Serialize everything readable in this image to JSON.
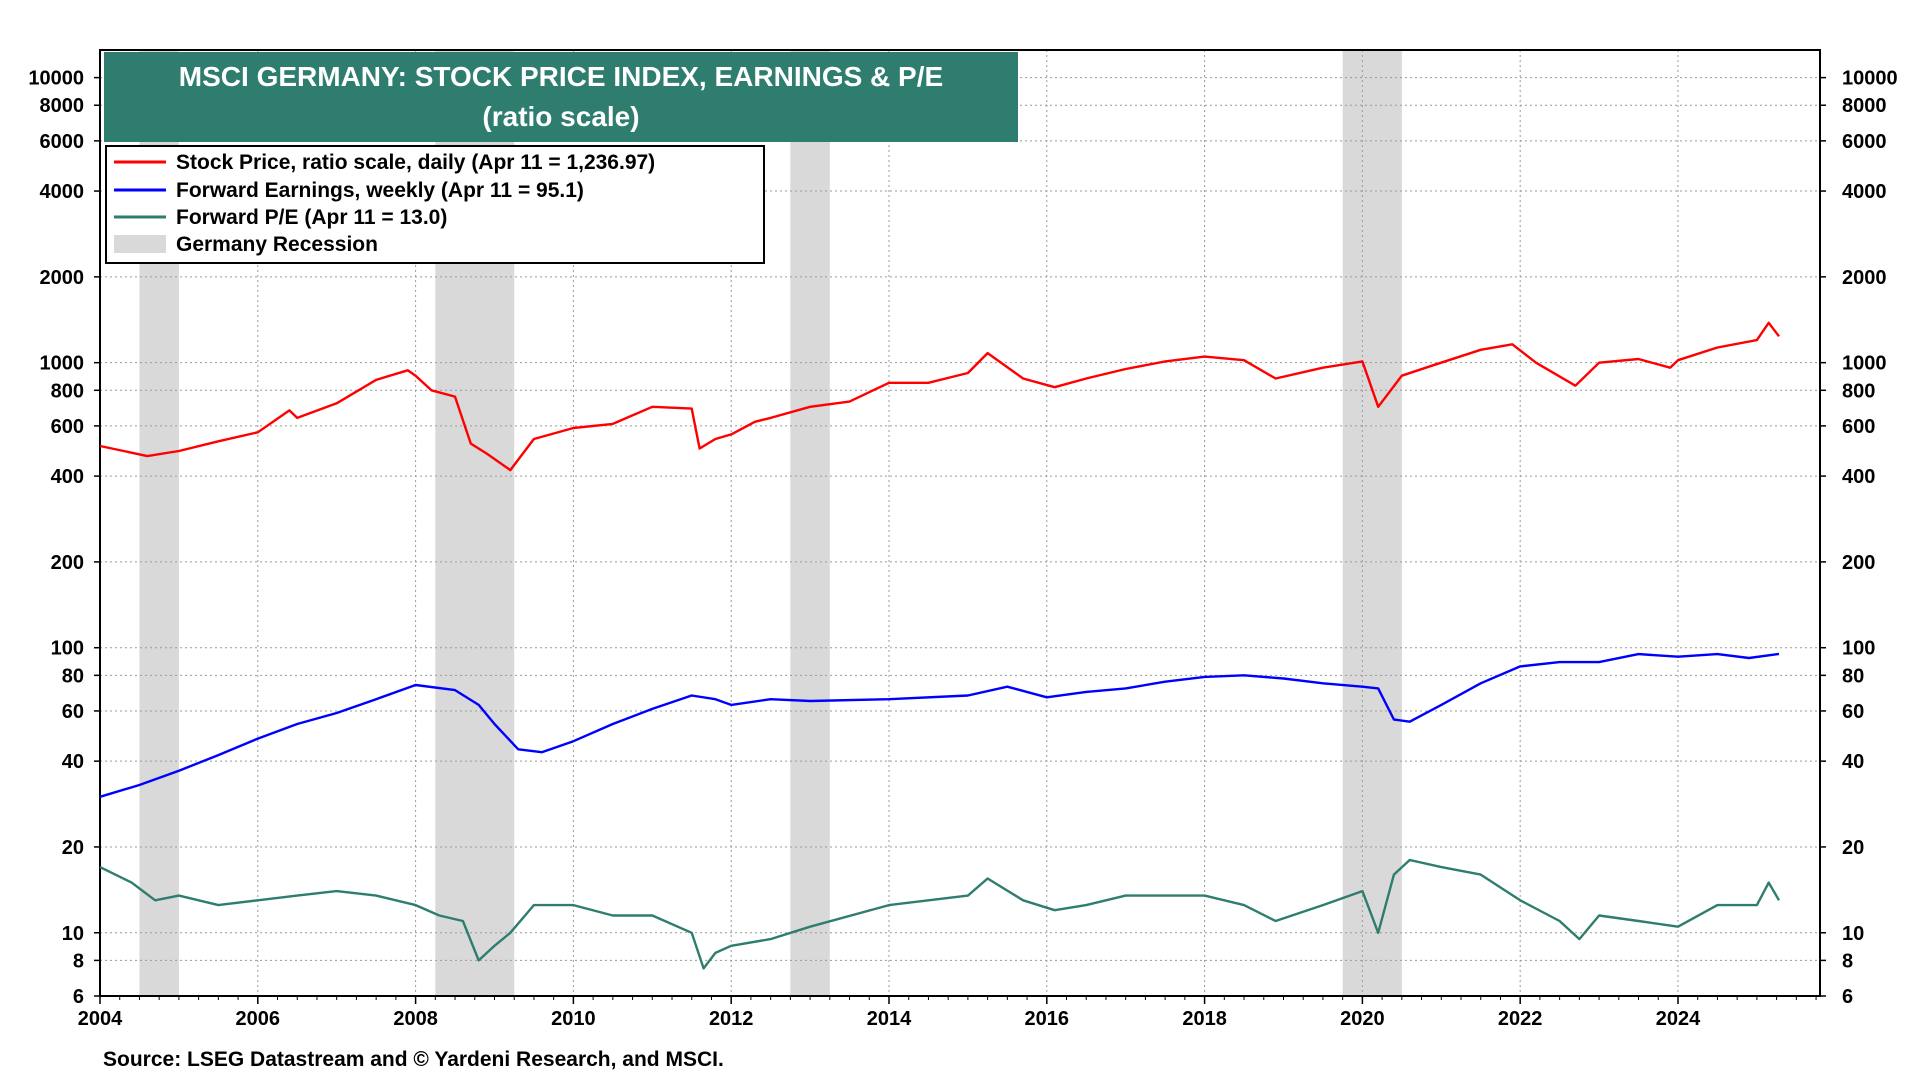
{
  "chart_data": {
    "type": "line",
    "title": "MSCI GERMANY: STOCK PRICE INDEX, EARNINGS & P/E",
    "subtitle": "(ratio scale)",
    "source": "Source: LSEG Datastream and © Yardeni Research, and MSCI.",
    "y_scale": "log",
    "ylim": [
      6,
      12500
    ],
    "xlim": [
      2004.0,
      2025.8
    ],
    "x_ticks": [
      2004,
      2006,
      2008,
      2010,
      2012,
      2014,
      2016,
      2018,
      2020,
      2022,
      2024
    ],
    "y_ticks": [
      6,
      8,
      10,
      20,
      40,
      60,
      80,
      100,
      200,
      400,
      600,
      800,
      1000,
      2000,
      4000,
      6000,
      8000,
      10000
    ],
    "grid": "dotted",
    "legend_position": "top-left",
    "legend": [
      {
        "label": "Stock Price, ratio scale, daily (Apr 11 = 1,236.97)",
        "color": "#ff0000",
        "kind": "line"
      },
      {
        "label": "Forward Earnings, weekly (Apr 11 = 95.1)",
        "color": "#0000ff",
        "kind": "line"
      },
      {
        "label": "Forward P/E (Apr 11 = 13.0)",
        "color": "#2e7d6e",
        "kind": "line"
      },
      {
        "label": "Germany Recession",
        "color": "#d9d9d9",
        "kind": "box"
      }
    ],
    "recessions": [
      [
        2004.5,
        2005.0
      ],
      [
        2008.25,
        2009.25
      ],
      [
        2012.75,
        2013.25
      ],
      [
        2019.75,
        2020.5
      ]
    ],
    "series": [
      {
        "name": "Stock Price, ratio scale, daily (Apr 11 = 1,236.97)",
        "color": "#ff0000",
        "x": [
          2004.0,
          2004.3,
          2004.6,
          2005.0,
          2005.5,
          2006.0,
          2006.4,
          2006.5,
          2007.0,
          2007.5,
          2007.9,
          2008.0,
          2008.2,
          2008.5,
          2008.7,
          2008.9,
          2009.2,
          2009.5,
          2010.0,
          2010.5,
          2011.0,
          2011.5,
          2011.6,
          2011.8,
          2012.0,
          2012.3,
          2012.5,
          2013.0,
          2013.5,
          2014.0,
          2014.5,
          2015.0,
          2015.25,
          2015.7,
          2016.1,
          2016.5,
          2017.0,
          2017.5,
          2018.0,
          2018.5,
          2018.9,
          2019.5,
          2020.0,
          2020.2,
          2020.5,
          2020.9,
          2021.5,
          2021.9,
          2022.2,
          2022.7,
          2023.0,
          2023.5,
          2023.9,
          2024.0,
          2024.5,
          2025.0,
          2025.15,
          2025.28
        ],
        "y": [
          510,
          490,
          470,
          490,
          530,
          570,
          680,
          640,
          720,
          870,
          940,
          900,
          800,
          760,
          520,
          480,
          420,
          540,
          590,
          610,
          700,
          690,
          500,
          540,
          560,
          620,
          640,
          700,
          730,
          850,
          850,
          920,
          1080,
          880,
          820,
          880,
          950,
          1010,
          1050,
          1020,
          880,
          960,
          1010,
          700,
          900,
          980,
          1110,
          1160,
          1000,
          830,
          1000,
          1030,
          960,
          1020,
          1130,
          1200,
          1380,
          1237
        ]
      },
      {
        "name": "Forward Earnings, weekly (Apr 11 = 95.1)",
        "color": "#0000ff",
        "x": [
          2004.0,
          2004.5,
          2005.0,
          2005.5,
          2006.0,
          2006.5,
          2007.0,
          2007.5,
          2008.0,
          2008.5,
          2008.8,
          2009.0,
          2009.3,
          2009.6,
          2010.0,
          2010.5,
          2011.0,
          2011.5,
          2011.8,
          2012.0,
          2012.5,
          2013.0,
          2014.0,
          2015.0,
          2015.5,
          2016.0,
          2016.5,
          2017.0,
          2017.5,
          2018.0,
          2018.5,
          2019.0,
          2019.5,
          2020.0,
          2020.2,
          2020.4,
          2020.6,
          2021.0,
          2021.5,
          2022.0,
          2022.5,
          2023.0,
          2023.5,
          2024.0,
          2024.5,
          2024.9,
          2025.28
        ],
        "y": [
          30,
          33,
          37,
          42,
          48,
          54,
          59,
          66,
          74,
          71,
          63,
          54,
          44,
          43,
          47,
          54,
          61,
          68,
          66,
          63,
          66,
          65,
          66,
          68,
          73,
          67,
          70,
          72,
          76,
          79,
          80,
          78,
          75,
          73,
          72,
          56,
          55,
          63,
          75,
          86,
          89,
          89,
          95,
          93,
          95,
          92,
          95.1
        ]
      },
      {
        "name": "Forward P/E (Apr 11 = 13.0)",
        "color": "#2e7d6e",
        "x": [
          2004.0,
          2004.4,
          2004.7,
          2005.0,
          2005.5,
          2006.0,
          2006.5,
          2007.0,
          2007.5,
          2008.0,
          2008.3,
          2008.6,
          2008.8,
          2009.0,
          2009.2,
          2009.5,
          2010.0,
          2010.5,
          2011.0,
          2011.5,
          2011.65,
          2011.8,
          2012.0,
          2012.5,
          2013.0,
          2014.0,
          2015.0,
          2015.25,
          2015.7,
          2016.1,
          2016.5,
          2017.0,
          2017.5,
          2018.0,
          2018.5,
          2018.9,
          2019.5,
          2020.0,
          2020.2,
          2020.4,
          2020.6,
          2021.0,
          2021.5,
          2022.0,
          2022.5,
          2022.75,
          2023.0,
          2023.5,
          2024.0,
          2024.5,
          2025.0,
          2025.15,
          2025.28
        ],
        "y": [
          17,
          15,
          13,
          13.5,
          12.5,
          13,
          13.5,
          14,
          13.5,
          12.5,
          11.5,
          11,
          8,
          9,
          10,
          12.5,
          12.5,
          11.5,
          11.5,
          10,
          7.5,
          8.5,
          9,
          9.5,
          10.5,
          12.5,
          13.5,
          15.5,
          13,
          12,
          12.5,
          13.5,
          13.5,
          13.5,
          12.5,
          11,
          12.5,
          14,
          10,
          16,
          18,
          17,
          16,
          13,
          11,
          9.5,
          11.5,
          11,
          10.5,
          12.5,
          12.5,
          15,
          13
        ]
      }
    ]
  }
}
